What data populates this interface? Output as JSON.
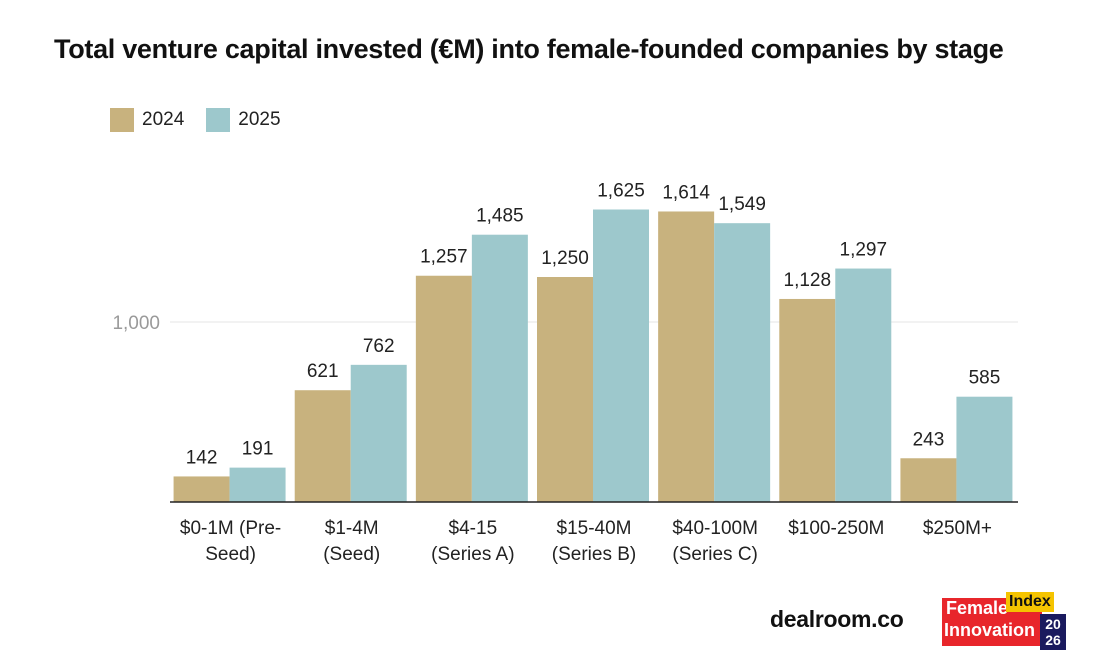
{
  "chart_data": {
    "type": "bar",
    "title": "Total venture capital invested (€M) into female-founded companies by stage",
    "categories": [
      [
        "$0-1M (Pre-",
        "Seed)"
      ],
      [
        "$1-4M",
        "(Seed)"
      ],
      [
        "$4-15",
        "(Series A)"
      ],
      [
        "$15-40M",
        "(Series B)"
      ],
      [
        "$40-100M",
        "(Series C)"
      ],
      [
        "$100-250M"
      ],
      [
        "$250M+"
      ]
    ],
    "series": [
      {
        "name": "2024",
        "color": "#c8b27e",
        "values": [
          142,
          621,
          1257,
          1250,
          1614,
          1128,
          243
        ],
        "labels": [
          "142",
          "621",
          "1,257",
          "1,250",
          "1,614",
          "1,128",
          "243"
        ]
      },
      {
        "name": "2025",
        "color": "#9dc8cc",
        "values": [
          191,
          762,
          1485,
          1625,
          1549,
          1297,
          585
        ],
        "labels": [
          "191",
          "762",
          "1,485",
          "1,625",
          "1,549",
          "1,297",
          "585"
        ]
      }
    ],
    "yticks": [
      {
        "value": 1000,
        "label": "1,000"
      }
    ],
    "ylim": [
      0,
      1800
    ],
    "xlabel": "",
    "ylabel": "",
    "legend_position": "top-left"
  },
  "footer": {
    "brand": "dealroom.co",
    "logo_line1": "Female",
    "logo_line2": "Innovation",
    "logo_index": "Index",
    "logo_year_top": "20",
    "logo_year_bottom": "26"
  }
}
